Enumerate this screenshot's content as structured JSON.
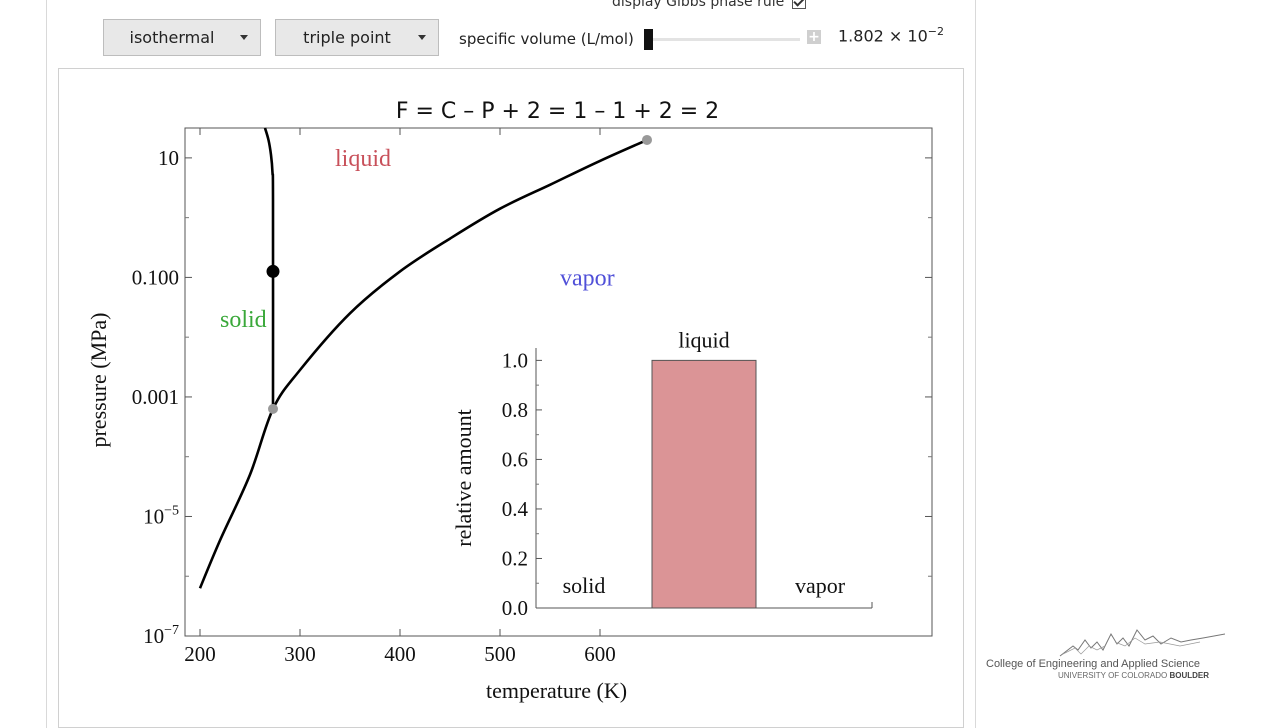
{
  "controls": {
    "gibbs_label": "display Gibbs phase rule",
    "gibbs_checked": true,
    "dropdown_mode": "isothermal",
    "dropdown_point": "triple point",
    "specific_volume_label": "specific volume (L/mol)",
    "specific_volume_value": "1.802 × 10",
    "specific_volume_exp": "−2",
    "slider_fraction": 0.0
  },
  "chart_data": [
    {
      "type": "line",
      "title": "F   =   C – P + 2   =   1 – 1 + 2   =   2",
      "xlabel": "temperature (K)",
      "ylabel": "pressure (MPa)",
      "xlim": [
        185,
        932
      ],
      "ylim_log10": [
        -7,
        1.5
      ],
      "y_scale": "log",
      "x_ticks": [
        200,
        300,
        400,
        500,
        600
      ],
      "y_ticks": [
        {
          "log": 1,
          "label": "10",
          "exp": ""
        },
        {
          "log": -1,
          "label": "0.100",
          "exp": ""
        },
        {
          "log": -3,
          "label": "0.001",
          "exp": ""
        },
        {
          "log": -5,
          "label": "10",
          "exp": "−5"
        },
        {
          "log": -7,
          "label": "10",
          "exp": "−7"
        }
      ],
      "region_labels": [
        {
          "text": "liquid",
          "color": "#c8505a",
          "x": 335,
          "ylog": 1
        },
        {
          "text": "vapor",
          "color": "#5050d8",
          "x": 560,
          "ylog": -1
        },
        {
          "text": "solid",
          "color": "#3aa83a",
          "x": 220,
          "ylog": -1.7
        }
      ],
      "series": [
        {
          "role": "vapor-pressure-curve",
          "color": "#000000",
          "points": [
            [
              200,
              -6.2
            ],
            [
              220,
              -5.4
            ],
            [
              250,
              -4.3
            ],
            [
              273,
              -3.2
            ],
            [
              300,
              -2.55
            ],
            [
              350,
              -1.6
            ],
            [
              400,
              -0.9
            ],
            [
              450,
              -0.35
            ],
            [
              500,
              0.15
            ],
            [
              550,
              0.55
            ],
            [
              600,
              0.95
            ],
            [
              647,
              1.3
            ]
          ]
        },
        {
          "role": "melting-curve",
          "color": "#000000",
          "points": [
            [
              273,
              -3.2
            ],
            [
              273,
              0.3
            ],
            [
              272.5,
              0.75
            ],
            [
              271,
              1.05
            ],
            [
              268.5,
              1.3
            ],
            [
              265,
              1.5
            ]
          ]
        }
      ],
      "markers": [
        {
          "role": "current-state",
          "x": 273,
          "ylog": -0.9,
          "color": "#000000"
        },
        {
          "role": "triple-point",
          "x": 273,
          "ylog": -3.2,
          "color": "#999999"
        },
        {
          "role": "critical-point",
          "x": 647,
          "ylog": 1.3,
          "color": "#999999"
        }
      ]
    },
    {
      "type": "bar",
      "title": "",
      "xlabel": "",
      "ylabel": "relative amount",
      "categories": [
        "solid",
        "liquid",
        "vapor"
      ],
      "values": [
        0,
        1.0,
        0
      ],
      "ylim": [
        0,
        1.05
      ],
      "y_ticks": [
        0.0,
        0.2,
        0.4,
        0.6,
        0.8,
        1.0
      ],
      "bar_color": "#db9496"
    }
  ],
  "logo": {
    "line1": "College of Engineering and Applied Science",
    "line2_prefix": "UNIVERSITY OF COLORADO ",
    "line2_bold": "BOULDER"
  }
}
